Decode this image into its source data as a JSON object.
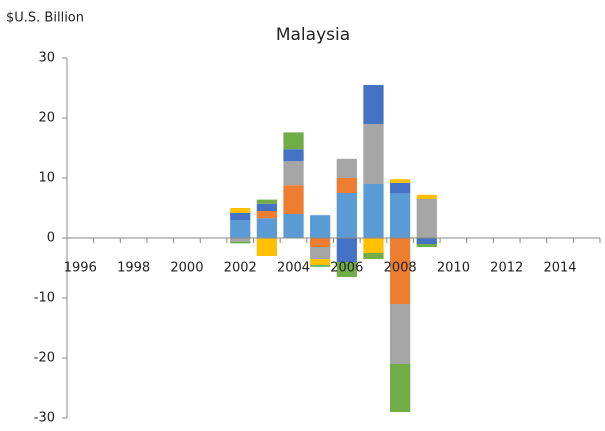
{
  "chart_data": {
    "type": "stacked_bar",
    "title": "Malaysia",
    "y_label": "$U.S. Billion",
    "categories": [
      "1996",
      null,
      "1998",
      null,
      "2000",
      null,
      "2002",
      null,
      "2004",
      null,
      "2006",
      null,
      "2008",
      null,
      "2010",
      null,
      "2012",
      null,
      "2014",
      null
    ],
    "series": [
      {
        "color": "#5b9bd5",
        "values": [
          null,
          null,
          null,
          null,
          null,
          null,
          3,
          3.3,
          4,
          3.8,
          7.5,
          9,
          7.5,
          0,
          null,
          null,
          null,
          null,
          null,
          null
        ]
      },
      {
        "color": "#ed7d31",
        "values": [
          null,
          null,
          null,
          null,
          null,
          null,
          0,
          1.2,
          4.8,
          -1.5,
          2.5,
          0,
          -11,
          0,
          null,
          null,
          null,
          null,
          null,
          null
        ]
      },
      {
        "color": "#a5a5a5",
        "values": [
          null,
          null,
          null,
          null,
          null,
          null,
          -0.6,
          0,
          4,
          -2,
          3.2,
          10,
          -10,
          6.5,
          null,
          null,
          null,
          null,
          null,
          null
        ]
      },
      {
        "color": "#4472c4",
        "values": [
          null,
          null,
          null,
          null,
          null,
          null,
          1.2,
          1.2,
          2,
          0,
          -4,
          6.5,
          1.7,
          -1,
          null,
          null,
          null,
          null,
          null,
          null
        ]
      },
      {
        "color": "#ffc000",
        "values": [
          null,
          null,
          null,
          null,
          null,
          null,
          0.8,
          -3,
          0,
          -1,
          0,
          -2.5,
          0.6,
          0.7,
          null,
          null,
          null,
          null,
          null,
          null
        ]
      },
      {
        "color": "#70ad47",
        "values": [
          null,
          null,
          null,
          null,
          null,
          null,
          -0.3,
          0.7,
          2.8,
          -0.3,
          -2.5,
          -1,
          -8,
          -0.5,
          null,
          null,
          null,
          null,
          null,
          null
        ]
      }
    ],
    "ylim": [
      -30,
      30
    ],
    "yticks": [
      -30,
      -20,
      -10,
      0,
      10,
      20,
      30
    ],
    "grid": false
  }
}
